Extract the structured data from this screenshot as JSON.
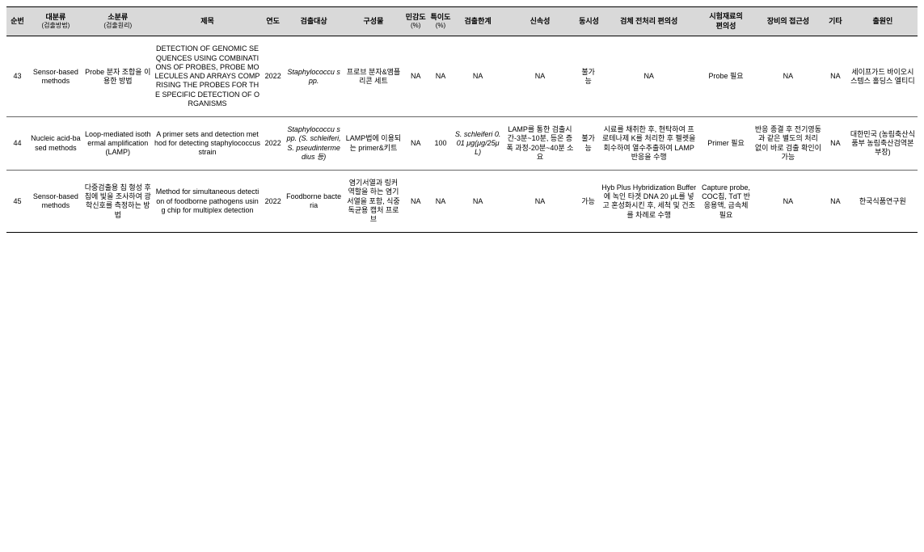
{
  "headers": {
    "no": "순번",
    "big": "대분류",
    "big_sub": "(검출방법)",
    "sub": "소분류",
    "sub_sub": "(검출원리)",
    "title": "제목",
    "year": "연도",
    "target": "검출대상",
    "component": "구성물",
    "sensitivity": "민감도",
    "sensitivity_sub": "(%)",
    "specificity": "특이도",
    "specificity_sub": "(%)",
    "limit": "검출한계",
    "rapidity": "신속성",
    "simultaneous": "동시성",
    "preprocess": "검체 전처리 편의성",
    "material": "시험재료의 편의성",
    "equipment": "장비의 접근성",
    "etc": "기타",
    "applicant": "출원인"
  },
  "rows": [
    {
      "no": "43",
      "big": "Sensor-based methods",
      "sub": "Probe 분자 조합을 이용한 방법",
      "title": "DETECTION OF GENOMIC SEQUENCES USING COMBINATIONS OF PROBES, PROBE MOLECULES AND ARRAYS COMPRISING THE PROBES FOR THE SPECIFIC DETECTION OF ORGANISMS",
      "year": "2022",
      "target": "Staphylococcu spp.",
      "target_italic": true,
      "component": "프로브 분자&앰플리콘 세트",
      "sensitivity": "NA",
      "specificity": "NA",
      "limit": "NA",
      "rapidity": "NA",
      "simultaneous": "불가능",
      "preprocess": "NA",
      "material": "Probe 필요",
      "equipment": "NA",
      "etc": "NA",
      "applicant": "세이프가드 바이오시스템스 홀딩스 엘티디"
    },
    {
      "no": "44",
      "big": "Nucleic acid-based methods",
      "sub": "Loop-mediated isothermal amplification (LAMP)",
      "title": "A primer sets and detection method for detecting staphylococcus strain",
      "year": "2022",
      "target": "Staphylococcu spp. (S. schleiferi, S. pseudintermedius 등)",
      "target_italic": true,
      "component": "LAMP법에 이용되는 primer&키트",
      "sensitivity": "NA",
      "specificity": "100",
      "limit": "S. schleiferi 0.01 μg(μg/25μL)",
      "rapidity": "LAMP를 통한 검출시간-3분~10분, 등온 증폭 과정-20분~40분 소요",
      "simultaneous": "불가능",
      "preprocess": "시료를 채취한 후, 현탁하여 프로테나제 K를 처리한 후 펠렛을 회수하여 열수추출하여 LAMP 반응을 수행",
      "material": "Primer 필요",
      "equipment": "반응 종결 후 전기영동과 같은 별도의 처리 없이 바로 검출 확인이 가능",
      "etc": "NA",
      "applicant": "대한민국 (농림축산식품부 농림축산검역본부장)"
    },
    {
      "no": "45",
      "big": "Sensor-based methods",
      "sub": "다중검출용 칩 형성 후 칩에 빛을 조사하여 광학신호를 측정하는 방법",
      "title": "Method for simultaneous detection of foodborne pathogens using chip for multiplex detection",
      "year": "2022",
      "target": "Foodborne bacteria",
      "target_italic": false,
      "component": "염기서열과 링커 역할을 하는 염기서열을 포함, 식중독균용 캡처 프로브",
      "sensitivity": "NA",
      "specificity": "NA",
      "limit": "NA",
      "rapidity": "NA",
      "simultaneous": "가능",
      "preprocess": "Hyb Plus Hybridization Buffer에 녹인 타겟 DNA 20 μL를 넣고 혼성화시킨 후, 세척 및 건조를 차례로 수행",
      "material": "Capture probe, COC칩, TdT 반응용액, 금속체 필요",
      "equipment": "NA",
      "etc": "NA",
      "applicant": "한국식품연구원"
    }
  ]
}
